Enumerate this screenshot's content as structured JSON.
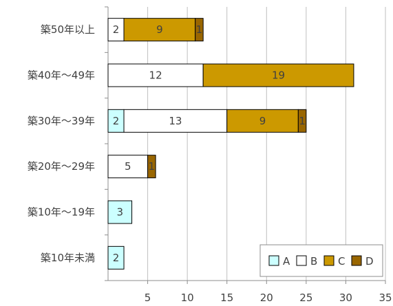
{
  "chart_data": {
    "type": "bar",
    "orientation": "horizontal",
    "stacked": true,
    "title": "",
    "xlabel": "",
    "ylabel": "",
    "xlim": [
      0,
      35
    ],
    "x_ticks": [
      5,
      10,
      15,
      20,
      25,
      30,
      35
    ],
    "grid": "vertical",
    "legend_position": "bottom-right",
    "categories": [
      "築50年以上",
      "築40年～49年",
      "築30年～39年",
      "築20年～29年",
      "築10年～19年",
      "築10年未満"
    ],
    "series": [
      {
        "name": "A",
        "values": [
          0,
          0,
          2,
          0,
          3,
          2
        ],
        "color": "#ccffff"
      },
      {
        "name": "B",
        "values": [
          2,
          12,
          13,
          5,
          0,
          0
        ],
        "color": "#ffffff"
      },
      {
        "name": "C",
        "values": [
          9,
          19,
          9,
          0,
          0,
          0
        ],
        "color": "#cc9900"
      },
      {
        "name": "D",
        "values": [
          1,
          0,
          1,
          1,
          0,
          0
        ],
        "color": "#996600"
      }
    ]
  }
}
